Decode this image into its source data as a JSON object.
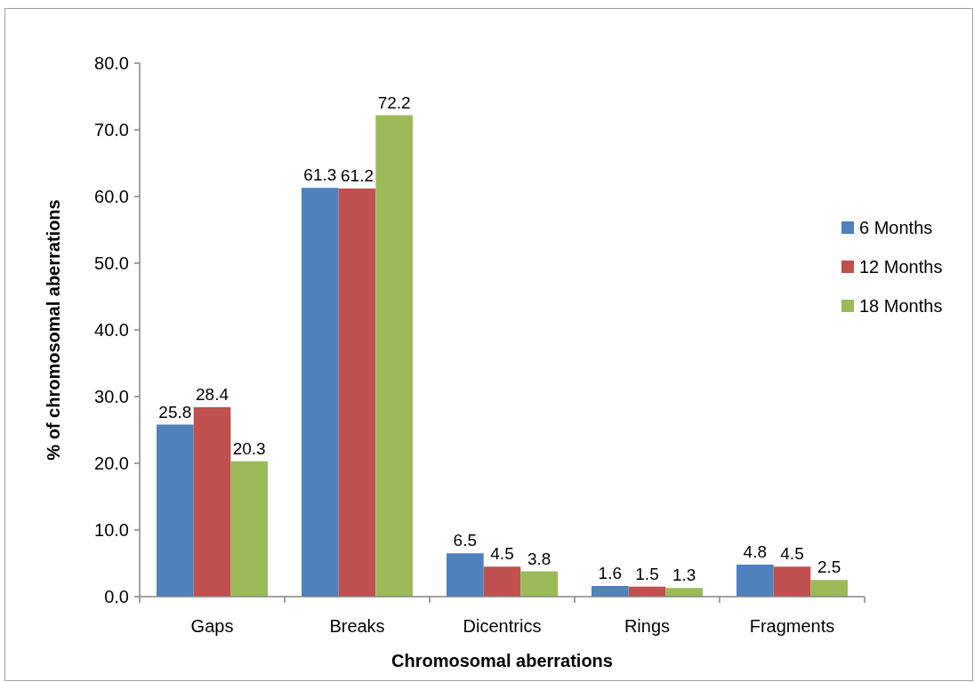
{
  "chart_data": {
    "type": "bar",
    "xlabel": "Chromosomal aberrations",
    "ylabel": "% of chromosomal aberrations",
    "categories": [
      "Gaps",
      "Breaks",
      "Dicentrics",
      "Rings",
      "Fragments"
    ],
    "series": [
      {
        "name": "6 Months",
        "color": "#4f81bd",
        "values": [
          25.8,
          61.3,
          6.5,
          1.6,
          4.8
        ]
      },
      {
        "name": "12 Months",
        "color": "#c0504d",
        "values": [
          28.4,
          61.2,
          4.5,
          1.5,
          4.5
        ]
      },
      {
        "name": "18 Months",
        "color": "#9bbb59",
        "values": [
          20.3,
          72.2,
          3.8,
          1.3,
          2.5
        ]
      }
    ],
    "ylim": [
      0,
      80
    ],
    "yticks": [
      {
        "value": 0,
        "label": "0.0"
      },
      {
        "value": 10,
        "label": "10.0"
      },
      {
        "value": 20,
        "label": "20.0"
      },
      {
        "value": 30,
        "label": "30.0"
      },
      {
        "value": 40,
        "label": "40.0"
      },
      {
        "value": 50,
        "label": "50.0"
      },
      {
        "value": 60,
        "label": "60.0"
      },
      {
        "value": 70,
        "label": "70.0"
      },
      {
        "value": 80,
        "label": "80.0"
      }
    ],
    "data_labels": true,
    "legend": "right",
    "grid": false
  }
}
